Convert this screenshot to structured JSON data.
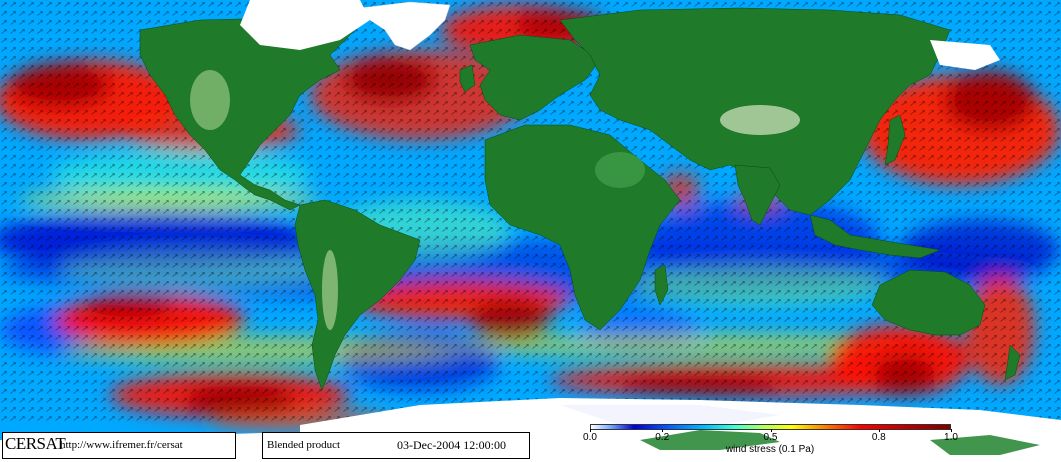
{
  "footer": {
    "logo": "CERSAT",
    "url": "http://www.ifremer.fr/cersat",
    "product": "Blended product",
    "date": "03-Dec-2004 12:00:00"
  },
  "colorbar": {
    "title": "wind stress (0.1 Pa)",
    "ticks": [
      "0.0",
      "0.2",
      "0.5",
      "0.8",
      "1.0"
    ],
    "tick_values": [
      0.0,
      0.2,
      0.5,
      0.8,
      1.0
    ],
    "range": [
      0.0,
      1.0
    ]
  },
  "map": {
    "projection": "equirectangular",
    "overlay": "wind stress vectors",
    "colors": {
      "land_low": "#1f7a2a",
      "land_high": "#9ac88a",
      "ice": "#ffffff",
      "calm": "#0000d8",
      "mid": "#00c0ff",
      "moderate": "#ffff00",
      "strong": "#ff0000",
      "max": "#800000"
    }
  }
}
